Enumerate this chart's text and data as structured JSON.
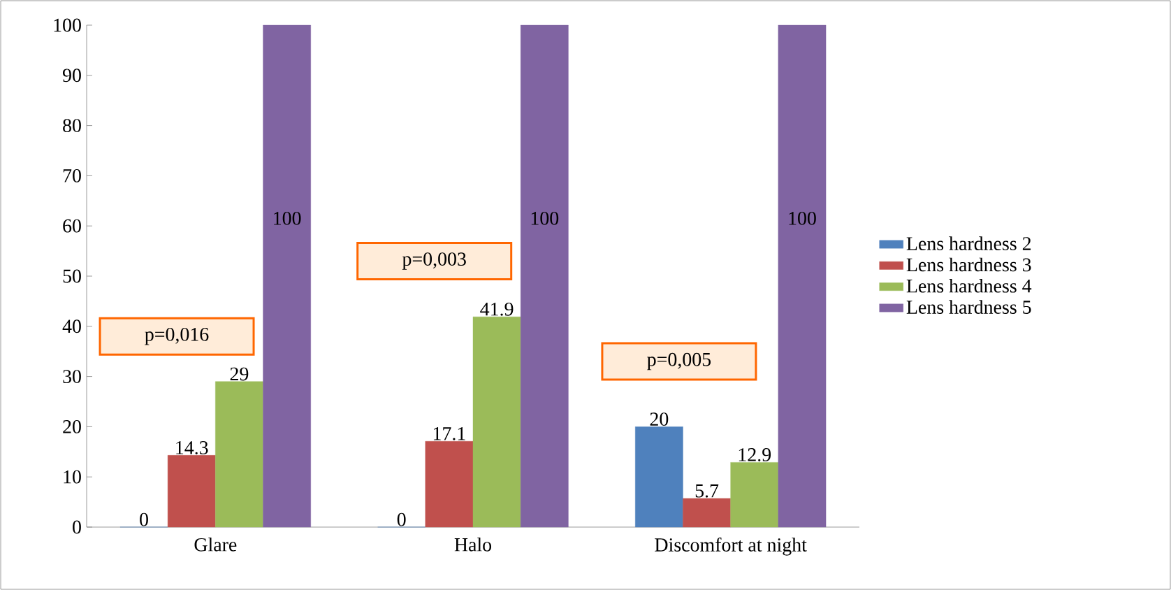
{
  "chart_data": {
    "type": "bar",
    "categories": [
      "Glare",
      "Halo",
      "Discomfort at night"
    ],
    "series": [
      {
        "name": "Lens hardness 2",
        "color": "#4f81bd",
        "values": [
          0,
          0,
          20
        ],
        "value_labels": [
          "0",
          "0",
          "20"
        ]
      },
      {
        "name": "Lens hardness 3",
        "color": "#c0504d",
        "values": [
          14.3,
          17.1,
          5.7
        ],
        "value_labels": [
          "14.3",
          "17.1",
          "5.7"
        ]
      },
      {
        "name": "Lens hardness 4",
        "color": "#9bbb59",
        "values": [
          29,
          41.9,
          12.9
        ],
        "value_labels": [
          "29",
          "41.9",
          "12.9"
        ]
      },
      {
        "name": "Lens hardness 5",
        "color": "#8064a2",
        "values": [
          100,
          100,
          100
        ],
        "value_labels": [
          "100",
          "100",
          "100"
        ]
      }
    ],
    "ylim": [
      0,
      100
    ],
    "yticks": [
      0,
      10,
      20,
      30,
      40,
      50,
      60,
      70,
      80,
      90,
      100
    ],
    "legend": "right",
    "grid": false,
    "annotations": [
      "p=0,016",
      "p=0,003",
      "p=0,005"
    ]
  }
}
